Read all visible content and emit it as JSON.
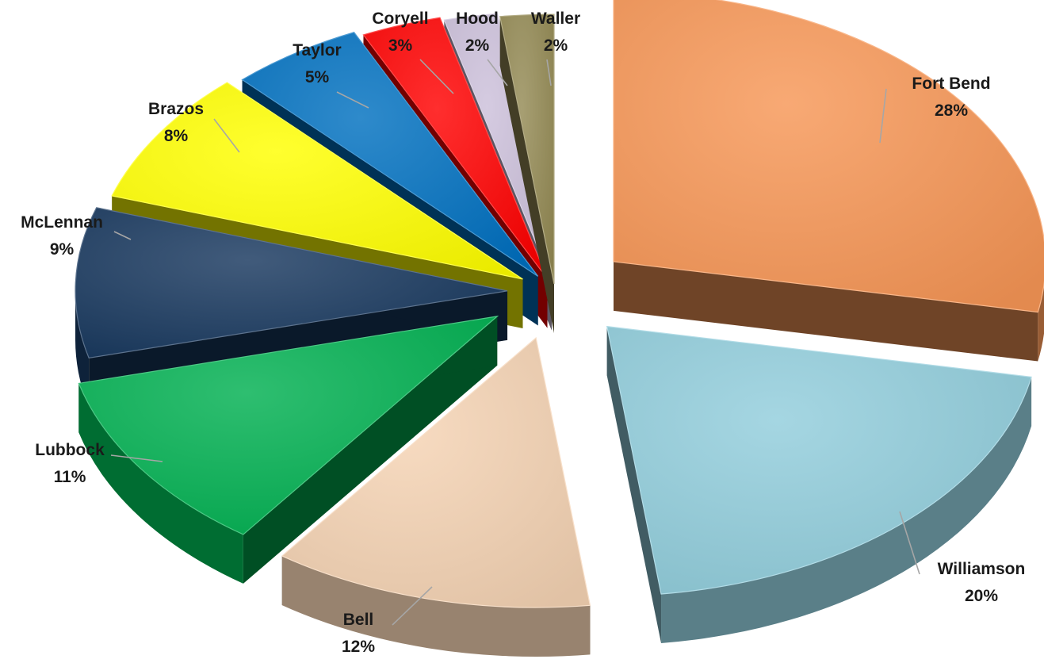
{
  "chart_data": {
    "type": "pie",
    "style": "3d-exploded",
    "categories": [
      "Fort Bend",
      "Williamson",
      "Bell",
      "Lubbock",
      "McLennan",
      "Brazos",
      "Taylor",
      "Coryell",
      "Hood",
      "Waller"
    ],
    "values": [
      28,
      20,
      12,
      11,
      9,
      8,
      5,
      3,
      2,
      2
    ],
    "labels": [
      "28%",
      "20%",
      "12%",
      "11%",
      "9%",
      "8%",
      "5%",
      "3%",
      "2%",
      "2%"
    ],
    "colors": [
      "#f79656",
      "#91cddc",
      "#f5d3b3",
      "#00b050",
      "#17375e",
      "#ffff00",
      "#0070c0",
      "#ff0000",
      "#ccc0da",
      "#948a54"
    ],
    "title": "",
    "legend": "none"
  }
}
